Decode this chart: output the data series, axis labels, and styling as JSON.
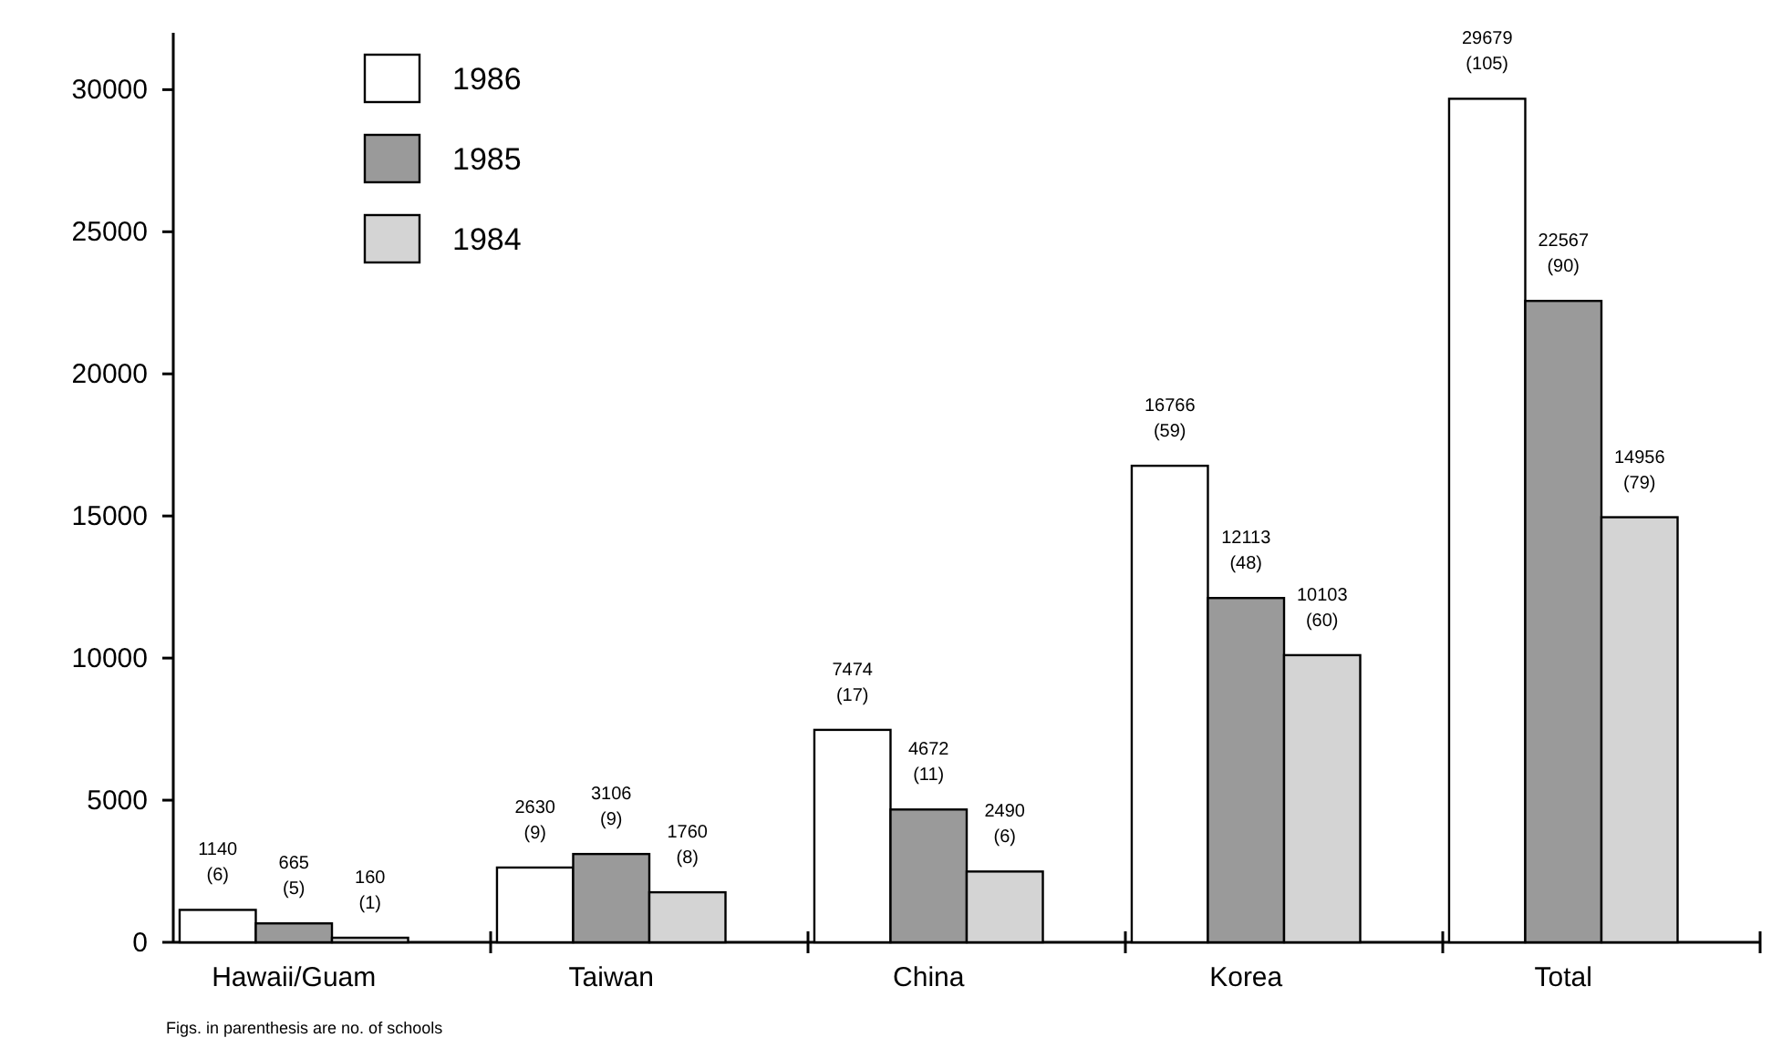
{
  "chart_data": {
    "type": "bar",
    "categories": [
      "Hawaii/Guam",
      "Taiwan",
      "China",
      "Korea",
      "Total"
    ],
    "series": [
      {
        "name": "1986",
        "color": "#ffffff",
        "values": [
          1140,
          2630,
          7474,
          16766,
          29679
        ],
        "value_labels": [
          "1140 (6)",
          "2630 (9)",
          "7474 (17)",
          "16766 (59)",
          "29679 (105)"
        ]
      },
      {
        "name": "1985",
        "color": "#9a9a9a",
        "values": [
          665,
          3106,
          4672,
          12113,
          22567
        ],
        "value_labels": [
          "665 (5)",
          "3106 (9)",
          "4672 (11)",
          "12113 (48)",
          "22567 (90)"
        ]
      },
      {
        "name": "1984",
        "color": "#d4d4d4",
        "values": [
          160,
          1760,
          2490,
          10103,
          14956
        ],
        "value_labels": [
          "160 (1)",
          "1760 (8)",
          "2490 (6)",
          "10103 (60)",
          "14956 (79)"
        ]
      }
    ],
    "ylim": [
      0,
      32000
    ],
    "yticks": [
      0,
      5000,
      10000,
      15000,
      20000,
      25000,
      30000
    ],
    "grid": false,
    "legend": "top left",
    "annotations": [
      "Figs. in parenthesis are no. of schools"
    ]
  }
}
